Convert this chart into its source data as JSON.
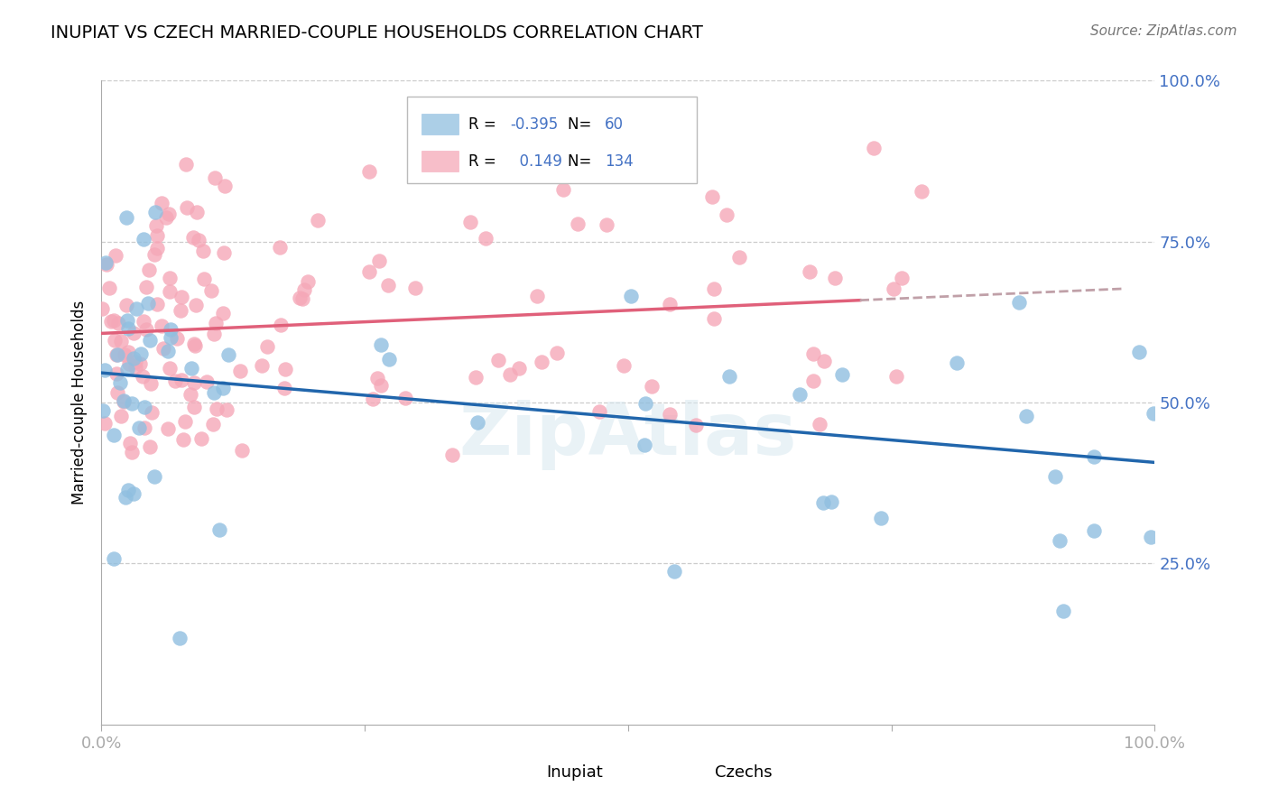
{
  "title": "INUPIAT VS CZECH MARRIED-COUPLE HOUSEHOLDS CORRELATION CHART",
  "source": "Source: ZipAtlas.com",
  "ylabel": "Married-couple Households",
  "inupiat_color": "#90bfe0",
  "czechs_color": "#f5a8b8",
  "inupiat_line_color": "#2166ac",
  "czechs_line_color": "#e0607a",
  "czechs_line_dash_color": "#c0a0a8",
  "label_color": "#4472c4",
  "grid_color": "#cccccc",
  "background_color": "#ffffff",
  "legend_r_inupiat": "-0.395",
  "legend_n_inupiat": "60",
  "legend_r_czechs": "0.149",
  "legend_n_czechs": "134",
  "inupiat_seed": 77,
  "czechs_seed": 88
}
